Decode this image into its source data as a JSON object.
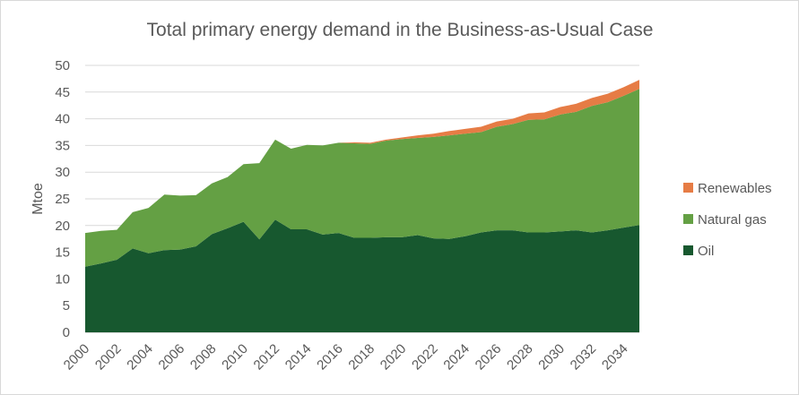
{
  "chart_data": {
    "type": "area",
    "stacked": true,
    "title": "Total primary energy demand in the Business-as-Usual Case",
    "ylabel": "Mtoe",
    "xlabel": "",
    "ylim": [
      0,
      50
    ],
    "y_ticks": [
      0,
      5,
      10,
      15,
      20,
      25,
      30,
      35,
      40,
      45,
      50
    ],
    "x": [
      2000,
      2001,
      2002,
      2003,
      2004,
      2005,
      2006,
      2007,
      2008,
      2009,
      2010,
      2011,
      2012,
      2013,
      2014,
      2015,
      2016,
      2017,
      2018,
      2019,
      2020,
      2021,
      2022,
      2023,
      2024,
      2025,
      2026,
      2027,
      2028,
      2029,
      2030,
      2031,
      2032,
      2033,
      2034,
      2035
    ],
    "x_tick_labels": [
      "2000",
      "2002",
      "2004",
      "2006",
      "2008",
      "2010",
      "2012",
      "2014",
      "2016",
      "2018",
      "2020",
      "2022",
      "2024",
      "2026",
      "2028",
      "2030",
      "2032",
      "2034"
    ],
    "grid": true,
    "legend_position": "right",
    "series": [
      {
        "name": "Oil",
        "color": "#17582f",
        "values": [
          12.3,
          12.9,
          13.6,
          15.7,
          14.8,
          15.4,
          15.5,
          16.1,
          18.4,
          19.5,
          20.7,
          17.4,
          21.1,
          19.3,
          19.3,
          18.3,
          18.6,
          17.7,
          17.7,
          17.8,
          17.8,
          18.2,
          17.6,
          17.5,
          18.0,
          18.7,
          19.1,
          19.1,
          18.7,
          18.7,
          18.9,
          19.1,
          18.7,
          19.1,
          19.6,
          20.1
        ]
      },
      {
        "name": "Natural gas",
        "color": "#64a044",
        "values": [
          6.3,
          6.1,
          5.6,
          6.8,
          8.5,
          10.4,
          10.1,
          9.6,
          9.5,
          9.6,
          10.8,
          14.3,
          15.0,
          15.1,
          15.8,
          16.7,
          16.9,
          17.7,
          17.6,
          18.1,
          18.4,
          18.2,
          19.0,
          19.4,
          19.2,
          18.8,
          19.4,
          19.9,
          21.1,
          21.2,
          21.9,
          22.2,
          23.7,
          24.0,
          24.7,
          25.5
        ]
      },
      {
        "name": "Renewables",
        "color": "#e67c45",
        "values": [
          0.0,
          0.0,
          0.0,
          0.0,
          0.0,
          0.0,
          0.0,
          0.0,
          0.0,
          0.0,
          0.0,
          0.0,
          0.0,
          0.0,
          0.0,
          0.0,
          0.0,
          0.2,
          0.2,
          0.2,
          0.3,
          0.5,
          0.6,
          0.8,
          0.9,
          1.0,
          1.0,
          1.0,
          1.2,
          1.3,
          1.4,
          1.5,
          1.5,
          1.6,
          1.6,
          1.7
        ]
      }
    ],
    "legend_order": [
      "Renewables",
      "Natural gas",
      "Oil"
    ]
  }
}
